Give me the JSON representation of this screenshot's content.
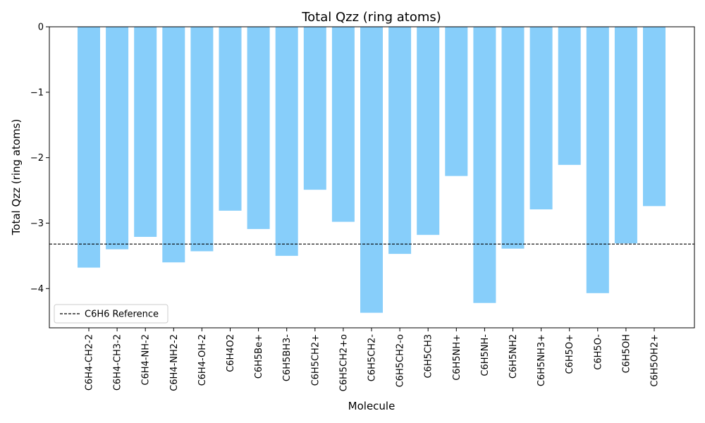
{
  "chart_data": {
    "type": "bar",
    "title": "Total Qzz (ring atoms)",
    "xlabel": "Molecule",
    "ylabel": "Total Qzz (ring atoms)",
    "categories": [
      "C6H4-CH2-2",
      "C6H4-CH3-2",
      "C6H4-NH-2",
      "C6H4-NH2-2",
      "C6H4-OH-2",
      "C6H4O2",
      "C6H5Be+",
      "C6H5BH3-",
      "C6H5CH2+",
      "C6H5CH2+o",
      "C6H5CH2-",
      "C6H5CH2-o",
      "C6H5CH3",
      "C6H5NH+",
      "C6H5NH-",
      "C6H5NH2",
      "C6H5NH3+",
      "C6H5O+",
      "C6H5O-",
      "C6H5OH",
      "C6H5OH2+"
    ],
    "values": [
      -3.68,
      -3.4,
      -3.21,
      -3.6,
      -3.43,
      -2.81,
      -3.09,
      -3.5,
      -2.49,
      -2.98,
      -4.37,
      -3.47,
      -3.18,
      -2.28,
      -4.22,
      -3.39,
      -2.79,
      -2.11,
      -4.07,
      -3.31,
      -2.74
    ],
    "ylim": [
      -4.6,
      0
    ],
    "yticks": [
      0,
      -1,
      -2,
      -3,
      -4
    ],
    "ytick_labels": [
      "0",
      "−1",
      "−2",
      "−3",
      "−4"
    ],
    "bar_color": "#87CEFA",
    "reference": {
      "label": "C6H6 Reference",
      "value": -3.32,
      "color": "#000000",
      "style": "dashed"
    },
    "legend": {
      "placement": "lower-left",
      "entries": [
        "C6H6 Reference"
      ]
    },
    "grid": false
  }
}
